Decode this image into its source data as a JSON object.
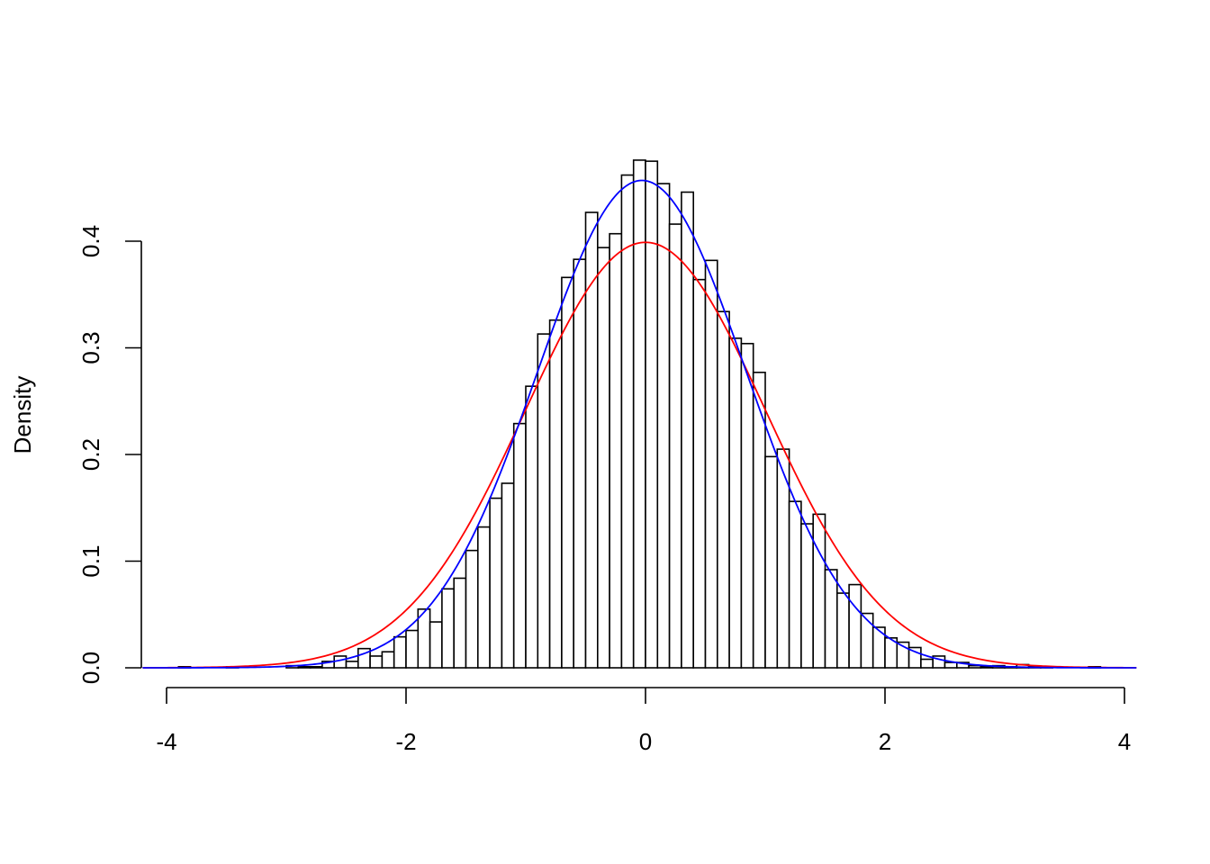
{
  "chart_data": {
    "type": "bar",
    "subtype": "histogram",
    "title": "",
    "xlabel": "",
    "ylabel": "Density",
    "xlim": [
      -4.2,
      4.1
    ],
    "ylim": [
      0,
      0.48
    ],
    "grid": false,
    "x_ticks": [
      "-4",
      "-2",
      "0",
      "2",
      "4"
    ],
    "x_tick_values": [
      -4,
      -2,
      0,
      2,
      4
    ],
    "y_ticks": [
      "0.0",
      "0.1",
      "0.2",
      "0.3",
      "0.4"
    ],
    "y_tick_values": [
      0,
      0.1,
      0.2,
      0.3,
      0.4
    ],
    "bin_start": -3.9,
    "bin_width": 0.1,
    "densities": [
      0.001,
      0,
      0,
      0,
      0.001,
      0,
      0,
      0,
      0,
      0.002,
      0.001,
      0.001,
      0.006,
      0.011,
      0.006,
      0.018,
      0.011,
      0.015,
      0.029,
      0.035,
      0.055,
      0.043,
      0.074,
      0.084,
      0.11,
      0.132,
      0.159,
      0.173,
      0.229,
      0.264,
      0.313,
      0.326,
      0.366,
      0.383,
      0.427,
      0.394,
      0.407,
      0.462,
      0.476,
      0.475,
      0.454,
      0.416,
      0.446,
      0.364,
      0.382,
      0.334,
      0.309,
      0.304,
      0.277,
      0.198,
      0.205,
      0.156,
      0.135,
      0.144,
      0.092,
      0.07,
      0.078,
      0.051,
      0.038,
      0.028,
      0.024,
      0.019,
      0.008,
      0.011,
      0.005,
      0.005,
      0.002,
      0.001,
      0.002,
      0.001,
      0.003,
      0.001,
      0.001,
      0,
      0,
      0,
      0.001
    ],
    "bar_fill": "#FFFFFF",
    "bar_stroke": "#000000",
    "curves": [
      {
        "type": "normal-density",
        "mean": 0,
        "sd": 1,
        "color": "#FF0000"
      },
      {
        "type": "normal-density",
        "mean": -0.03,
        "sd": 0.873,
        "color": "#0000FF"
      }
    ]
  }
}
